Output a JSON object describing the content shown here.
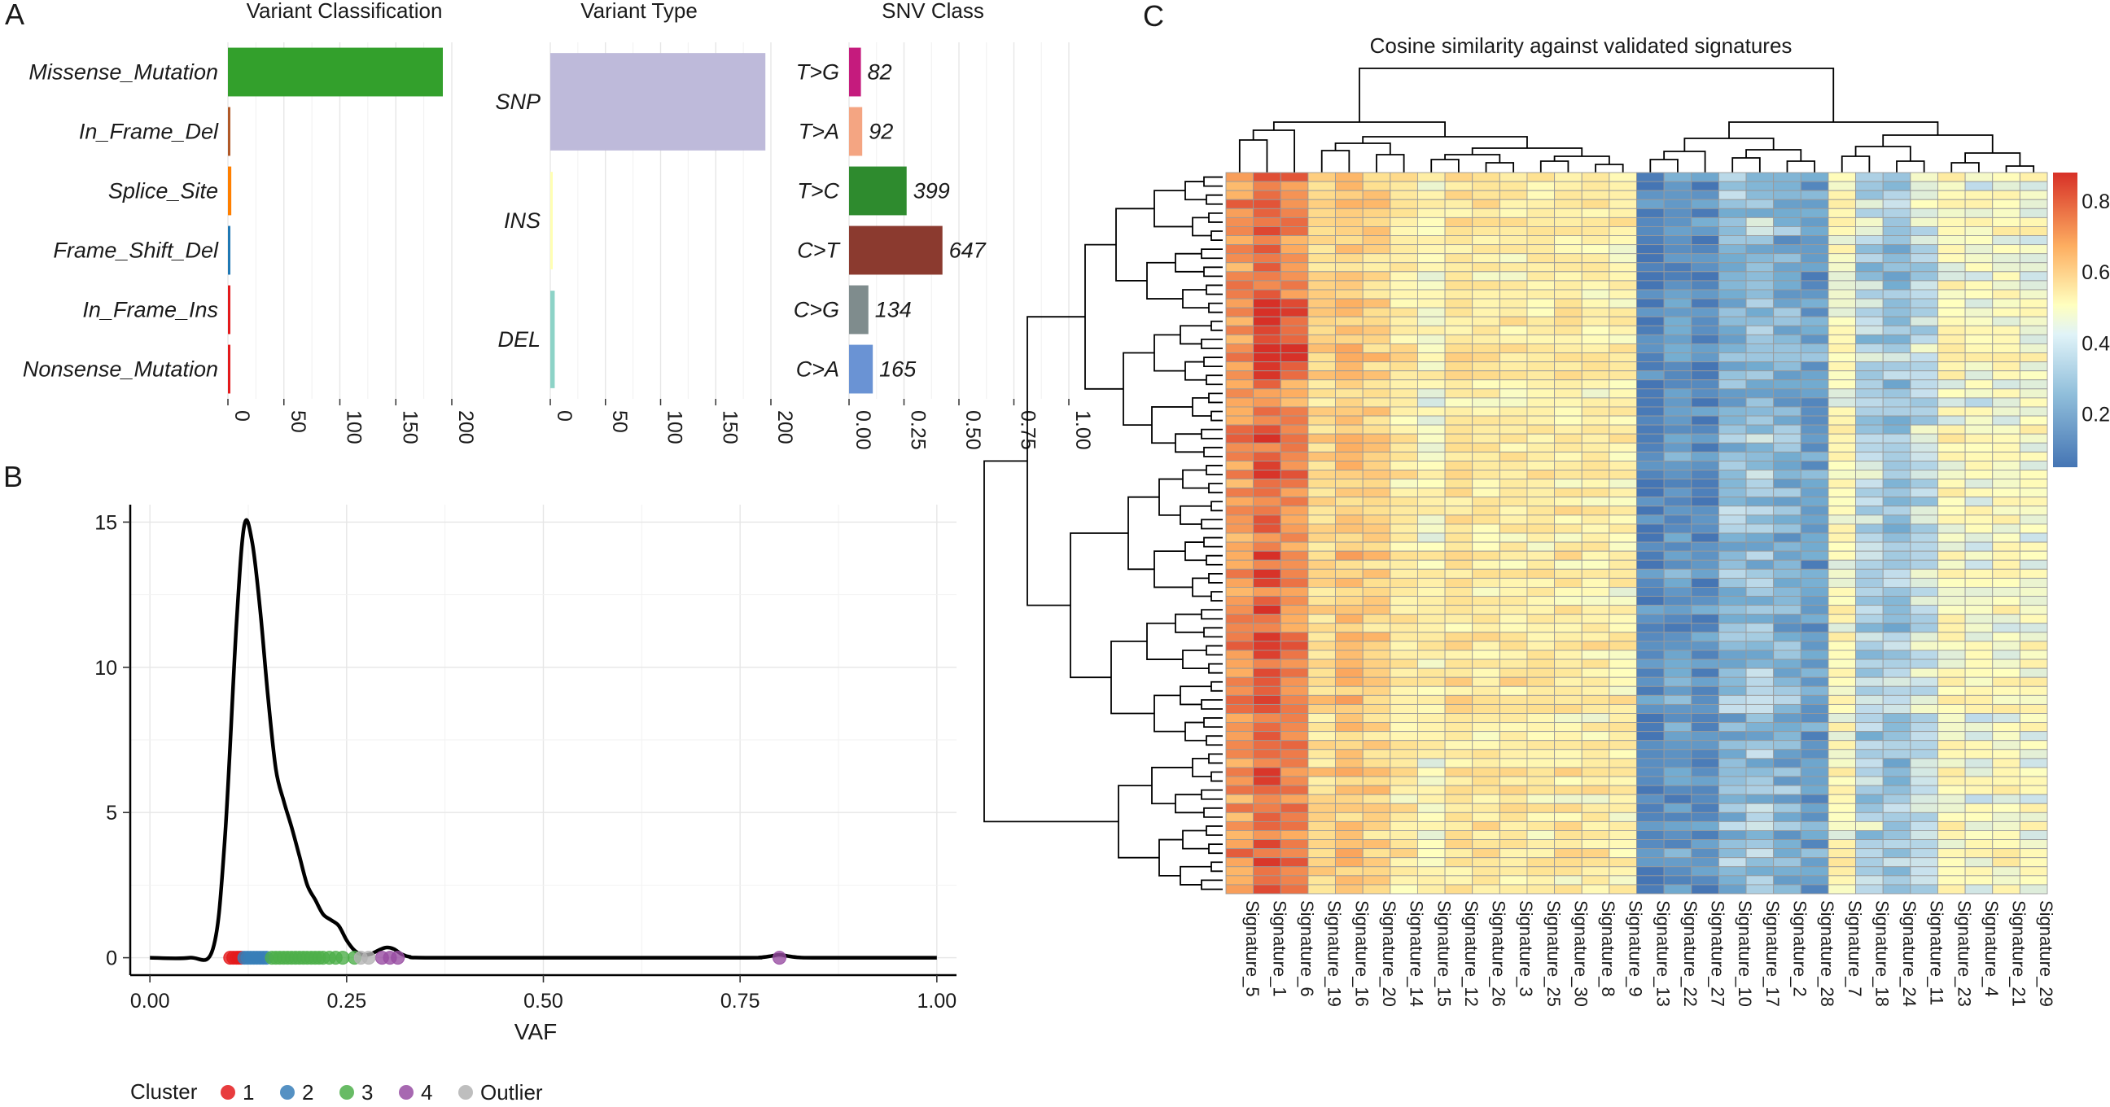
{
  "panels": {
    "A": {
      "letter": "A",
      "variant_classification": {
        "title": "Variant Classification",
        "categories": [
          "Missense_Mutation",
          "In_Frame_Del",
          "Splice_Site",
          "Frame_Shift_Del",
          "In_Frame_Ins",
          "Nonsense_Mutation"
        ],
        "values": [
          192,
          2,
          3,
          2,
          2,
          2
        ],
        "colors": [
          "#33a02c",
          "#b15928",
          "#ff7f00",
          "#1f78b4",
          "#e31a1c",
          "#e31a1c"
        ],
        "xticks": [
          "0",
          "50",
          "100",
          "150",
          "200"
        ],
        "xlim": [
          0,
          200
        ]
      },
      "variant_type": {
        "title": "Variant Type",
        "categories": [
          "SNP",
          "INS",
          "DEL"
        ],
        "values": [
          195,
          2,
          4
        ],
        "colors": [
          "#bebada",
          "#ffffb3",
          "#8dd3c7"
        ],
        "xticks": [
          "0",
          "50",
          "100",
          "150",
          "200"
        ],
        "xlim": [
          0,
          200
        ]
      },
      "snv_class": {
        "title": "SNV Class",
        "categories": [
          "T>G",
          "T>A",
          "T>C",
          "C>T",
          "C>G",
          "C>A"
        ],
        "counts": [
          "82",
          "92",
          "399",
          "647",
          "134",
          "165"
        ],
        "fractions": [
          0.054,
          0.06,
          0.262,
          0.425,
          0.088,
          0.108
        ],
        "colors": [
          "#c51b7d",
          "#f4a582",
          "#2e8b2e",
          "#8b3a2f",
          "#7f8c8d",
          "#6a93d4"
        ],
        "xticks": [
          "0.00",
          "0.25",
          "0.50",
          "0.75",
          "1.00"
        ],
        "xlim": [
          0,
          1
        ]
      }
    },
    "B": {
      "letter": "B",
      "xlabel": "VAF",
      "xticks": [
        "0.00",
        "0.25",
        "0.50",
        "0.75",
        "1.00"
      ],
      "yticks": [
        "0",
        "5",
        "10",
        "15"
      ],
      "xlim": [
        -0.025,
        1.025
      ],
      "ylim": [
        -0.6,
        15.6
      ],
      "legend": {
        "title": "Cluster",
        "items": [
          {
            "label": "1",
            "color": "#e41a1c"
          },
          {
            "label": "2",
            "color": "#377eb8"
          },
          {
            "label": "3",
            "color": "#4daf4a"
          },
          {
            "label": "4",
            "color": "#984ea3"
          },
          {
            "label": "Outlier",
            "color": "#b3b3b3"
          }
        ]
      }
    },
    "C": {
      "letter": "C",
      "title": "Cosine similarity against validated signatures",
      "colorbar_ticks": [
        "0.8",
        "0.6",
        "0.4",
        "0.2"
      ],
      "signatures": [
        "Signature_5",
        "Signature_1",
        "Signature_6",
        "Signature_19",
        "Signature_16",
        "Signature_20",
        "Signature_14",
        "Signature_15",
        "Signature_12",
        "Signature_26",
        "Signature_3",
        "Signature_25",
        "Signature_30",
        "Signature_8",
        "Signature_9",
        "Signature_13",
        "Signature_22",
        "Signature_27",
        "Signature_10",
        "Signature_17",
        "Signature_2",
        "Signature_28",
        "Signature_7",
        "Signature_18",
        "Signature_24",
        "Signature_11",
        "Signature_23",
        "Signature_4",
        "Signature_21",
        "Signature_29"
      ],
      "column_base": [
        0.72,
        0.8,
        0.74,
        0.56,
        0.62,
        0.58,
        0.5,
        0.45,
        0.52,
        0.5,
        0.5,
        0.49,
        0.5,
        0.49,
        0.47,
        0.1,
        0.16,
        0.12,
        0.24,
        0.26,
        0.21,
        0.16,
        0.44,
        0.3,
        0.26,
        0.33,
        0.44,
        0.4,
        0.43,
        0.42
      ],
      "n_rows": 80
    }
  },
  "chart_data": [
    {
      "type": "bar",
      "title": "Variant Classification",
      "categories": [
        "Missense_Mutation",
        "In_Frame_Del",
        "Splice_Site",
        "Frame_Shift_Del",
        "In_Frame_Ins",
        "Nonsense_Mutation"
      ],
      "values": [
        192,
        2,
        3,
        2,
        2,
        2
      ],
      "xlim": [
        0,
        200
      ],
      "orientation": "horizontal"
    },
    {
      "type": "bar",
      "title": "Variant Type",
      "categories": [
        "SNP",
        "INS",
        "DEL"
      ],
      "values": [
        195,
        2,
        4
      ],
      "xlim": [
        0,
        200
      ],
      "orientation": "horizontal"
    },
    {
      "type": "bar",
      "title": "SNV Class",
      "categories": [
        "T>G",
        "T>A",
        "T>C",
        "C>T",
        "C>G",
        "C>A"
      ],
      "values": [
        0.054,
        0.06,
        0.262,
        0.425,
        0.088,
        0.108
      ],
      "data_labels": [
        "82",
        "92",
        "399",
        "647",
        "134",
        "165"
      ],
      "xlim": [
        0,
        1
      ],
      "orientation": "horizontal"
    },
    {
      "type": "line",
      "xlabel": "VAF",
      "xlim": [
        -0.025,
        1.025
      ],
      "ylim": [
        -0.6,
        15.6
      ],
      "density_curve": {
        "x": [
          0.0,
          0.05,
          0.08,
          0.095,
          0.11,
          0.12,
          0.13,
          0.14,
          0.15,
          0.16,
          0.17,
          0.18,
          0.19,
          0.2,
          0.21,
          0.22,
          0.23,
          0.24,
          0.25,
          0.26,
          0.27,
          0.28,
          0.29,
          0.3,
          0.31,
          0.32,
          0.33,
          0.35,
          0.5,
          0.75,
          0.775,
          0.79,
          0.8,
          0.81,
          0.825,
          0.85,
          1.0
        ],
        "y": [
          0.0,
          0.0,
          0.3,
          4.0,
          11.5,
          14.9,
          14.3,
          12.0,
          9.0,
          6.5,
          5.4,
          4.5,
          3.5,
          2.5,
          2.0,
          1.5,
          1.3,
          1.1,
          0.6,
          0.25,
          0.1,
          0.12,
          0.25,
          0.35,
          0.3,
          0.12,
          0.03,
          0.0,
          0.0,
          0.0,
          0.01,
          0.06,
          0.1,
          0.06,
          0.01,
          0.0,
          0.0
        ]
      },
      "points": [
        {
          "cluster": "1",
          "x": [
            0.102,
            0.106,
            0.11,
            0.113,
            0.116
          ]
        },
        {
          "cluster": "2",
          "x": [
            0.12,
            0.124,
            0.128,
            0.132,
            0.136,
            0.14,
            0.144,
            0.148
          ]
        },
        {
          "cluster": "3",
          "x": [
            0.155,
            0.16,
            0.165,
            0.17,
            0.175,
            0.18,
            0.185,
            0.19,
            0.195,
            0.2,
            0.205,
            0.21,
            0.215,
            0.22,
            0.228,
            0.236,
            0.245,
            0.26
          ]
        },
        {
          "cluster": "4",
          "x": [
            0.295,
            0.305,
            0.315,
            0.8
          ]
        },
        {
          "cluster": "Outlier",
          "x": [
            0.268,
            0.278
          ]
        }
      ]
    },
    {
      "type": "heatmap",
      "title": "Cosine similarity against validated signatures",
      "columns": [
        "Signature_5",
        "Signature_1",
        "Signature_6",
        "Signature_19",
        "Signature_16",
        "Signature_20",
        "Signature_14",
        "Signature_15",
        "Signature_12",
        "Signature_26",
        "Signature_3",
        "Signature_25",
        "Signature_30",
        "Signature_8",
        "Signature_9",
        "Signature_13",
        "Signature_22",
        "Signature_27",
        "Signature_10",
        "Signature_17",
        "Signature_2",
        "Signature_28",
        "Signature_7",
        "Signature_18",
        "Signature_24",
        "Signature_11",
        "Signature_23",
        "Signature_4",
        "Signature_21",
        "Signature_29"
      ],
      "value_range": [
        0.05,
        0.88
      ],
      "colorbar_ticks": [
        0.8,
        0.6,
        0.4,
        0.2
      ]
    }
  ]
}
